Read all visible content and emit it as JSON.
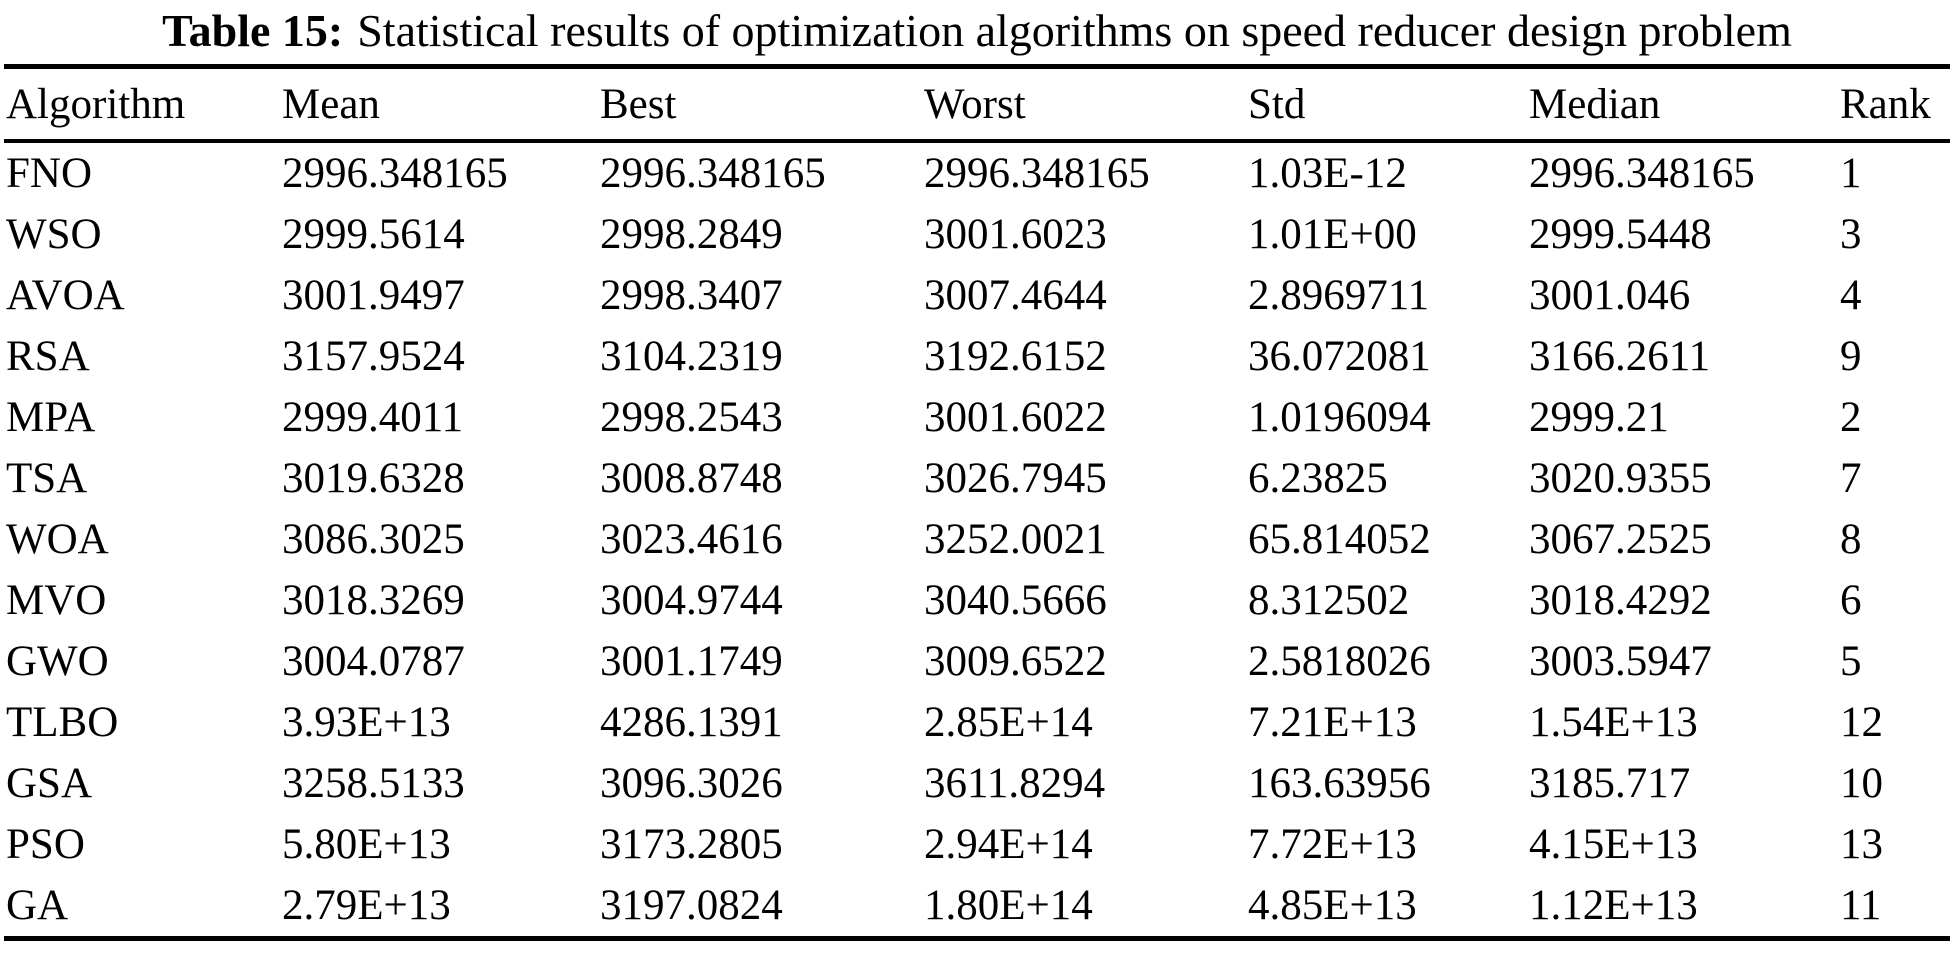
{
  "page": {
    "background_color": "#ffffff",
    "text_color": "#000000"
  },
  "caption": {
    "label": "Table 15:",
    "text": "Statistical results of optimization algorithms on speed reducer design problem"
  },
  "table": {
    "columns": [
      "Algorithm",
      "Mean",
      "Best",
      "Worst",
      "Std",
      "Median",
      "Rank"
    ],
    "rows": [
      [
        "FNO",
        "2996.348165",
        "2996.348165",
        "2996.348165",
        "1.03E-12",
        "2996.348165",
        "1"
      ],
      [
        "WSO",
        "2999.5614",
        "2998.2849",
        "3001.6023",
        "1.01E+00",
        "2999.5448",
        "3"
      ],
      [
        "AVOA",
        "3001.9497",
        "2998.3407",
        "3007.4644",
        "2.8969711",
        "3001.046",
        "4"
      ],
      [
        "RSA",
        "3157.9524",
        "3104.2319",
        "3192.6152",
        "36.072081",
        "3166.2611",
        "9"
      ],
      [
        "MPA",
        "2999.4011",
        "2998.2543",
        "3001.6022",
        "1.0196094",
        "2999.21",
        "2"
      ],
      [
        "TSA",
        "3019.6328",
        "3008.8748",
        "3026.7945",
        "6.23825",
        "3020.9355",
        "7"
      ],
      [
        "WOA",
        "3086.3025",
        "3023.4616",
        "3252.0021",
        "65.814052",
        "3067.2525",
        "8"
      ],
      [
        "MVO",
        "3018.3269",
        "3004.9744",
        "3040.5666",
        "8.312502",
        "3018.4292",
        "6"
      ],
      [
        "GWO",
        "3004.0787",
        "3001.1749",
        "3009.6522",
        "2.5818026",
        "3003.5947",
        "5"
      ],
      [
        "TLBO",
        "3.93E+13",
        "4286.1391",
        "2.85E+14",
        "7.21E+13",
        "1.54E+13",
        "12"
      ],
      [
        "GSA",
        "3258.5133",
        "3096.3026",
        "3611.8294",
        "163.63956",
        "3185.717",
        "10"
      ],
      [
        "PSO",
        "5.80E+13",
        "3173.2805",
        "2.94E+14",
        "7.72E+13",
        "4.15E+13",
        "13"
      ],
      [
        "GA",
        "2.79E+13",
        "3197.0824",
        "1.80E+14",
        "4.85E+13",
        "1.12E+13",
        "11"
      ]
    ]
  }
}
